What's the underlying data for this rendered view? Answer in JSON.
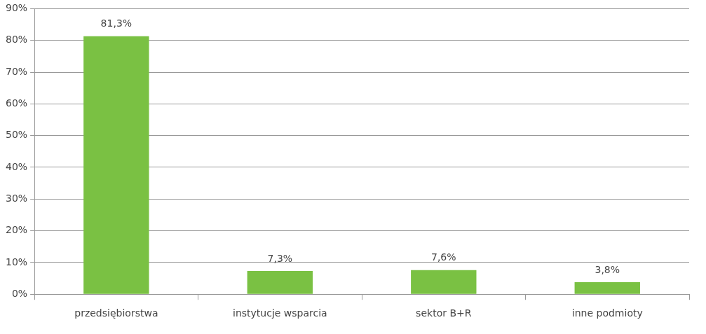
{
  "chart_data": {
    "type": "bar",
    "categories": [
      "przedsiębiorstwa",
      "instytucje wsparcia",
      "sektor B+R",
      "inne podmioty"
    ],
    "values": [
      81.3,
      7.3,
      7.6,
      3.8
    ],
    "color": "#7ac143",
    "value_labels": [
      "81,3%",
      "7,3%",
      "7,6%",
      "3,8%"
    ],
    "ylim": [
      0,
      90
    ],
    "yticks": [
      {
        "value": 0,
        "label": "0%"
      },
      {
        "value": 10,
        "label": "10%"
      },
      {
        "value": 20,
        "label": "20%"
      },
      {
        "value": 30,
        "label": "30%"
      },
      {
        "value": 40,
        "label": "40%"
      },
      {
        "value": 50,
        "label": "50%"
      },
      {
        "value": 60,
        "label": "60%"
      },
      {
        "value": 70,
        "label": "70%"
      },
      {
        "value": 80,
        "label": "80%"
      },
      {
        "value": 90,
        "label": "90%"
      }
    ],
    "grid": "y",
    "legend": false
  }
}
